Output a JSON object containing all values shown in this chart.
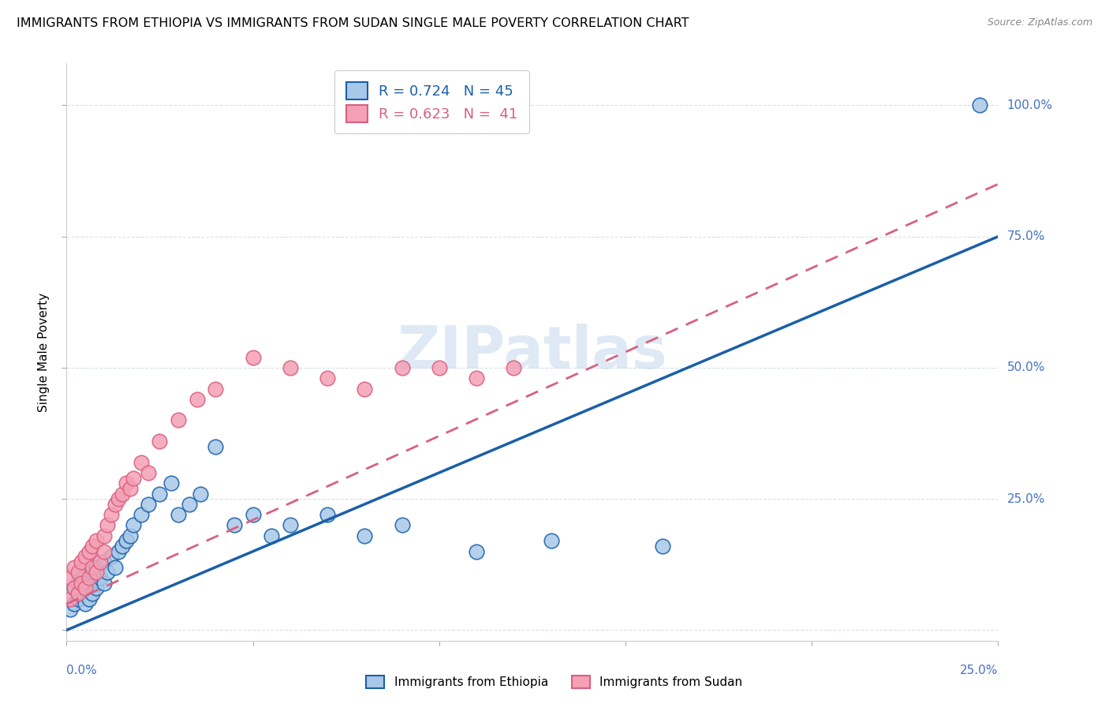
{
  "title": "IMMIGRANTS FROM ETHIOPIA VS IMMIGRANTS FROM SUDAN SINGLE MALE POVERTY CORRELATION CHART",
  "source": "Source: ZipAtlas.com",
  "ylabel": "Single Male Poverty",
  "ytick_vals": [
    0,
    0.25,
    0.5,
    0.75,
    1.0
  ],
  "xlim": [
    0,
    0.25
  ],
  "ylim": [
    -0.02,
    1.08
  ],
  "watermark": "ZIPatlas",
  "color_ethiopia": "#a8c8e8",
  "color_sudan": "#f4a0b5",
  "line_color_ethiopia": "#1a5fa8",
  "line_color_sudan": "#d96080",
  "axis_label_color": "#4472c4",
  "ethiopia_scatter_x": [
    0.001,
    0.002,
    0.002,
    0.003,
    0.003,
    0.004,
    0.004,
    0.005,
    0.005,
    0.006,
    0.006,
    0.007,
    0.007,
    0.008,
    0.008,
    0.009,
    0.01,
    0.01,
    0.011,
    0.012,
    0.013,
    0.014,
    0.015,
    0.016,
    0.017,
    0.018,
    0.02,
    0.022,
    0.025,
    0.028,
    0.03,
    0.033,
    0.036,
    0.04,
    0.045,
    0.05,
    0.055,
    0.06,
    0.07,
    0.08,
    0.09,
    0.11,
    0.13,
    0.16,
    0.245
  ],
  "ethiopia_scatter_y": [
    0.04,
    0.05,
    0.08,
    0.06,
    0.09,
    0.07,
    0.1,
    0.05,
    0.08,
    0.06,
    0.09,
    0.07,
    0.11,
    0.08,
    0.12,
    0.1,
    0.09,
    0.13,
    0.11,
    0.14,
    0.12,
    0.15,
    0.16,
    0.17,
    0.18,
    0.2,
    0.22,
    0.24,
    0.26,
    0.28,
    0.22,
    0.24,
    0.26,
    0.35,
    0.2,
    0.22,
    0.18,
    0.2,
    0.22,
    0.18,
    0.2,
    0.15,
    0.17,
    0.16,
    1.0
  ],
  "sudan_scatter_x": [
    0.001,
    0.001,
    0.002,
    0.002,
    0.003,
    0.003,
    0.004,
    0.004,
    0.005,
    0.005,
    0.006,
    0.006,
    0.007,
    0.007,
    0.008,
    0.008,
    0.009,
    0.01,
    0.01,
    0.011,
    0.012,
    0.013,
    0.014,
    0.015,
    0.016,
    0.017,
    0.018,
    0.02,
    0.022,
    0.025,
    0.03,
    0.035,
    0.04,
    0.05,
    0.06,
    0.07,
    0.08,
    0.09,
    0.1,
    0.11,
    0.12
  ],
  "sudan_scatter_y": [
    0.06,
    0.1,
    0.08,
    0.12,
    0.07,
    0.11,
    0.09,
    0.13,
    0.08,
    0.14,
    0.1,
    0.15,
    0.12,
    0.16,
    0.11,
    0.17,
    0.13,
    0.15,
    0.18,
    0.2,
    0.22,
    0.24,
    0.25,
    0.26,
    0.28,
    0.27,
    0.29,
    0.32,
    0.3,
    0.36,
    0.4,
    0.44,
    0.46,
    0.52,
    0.5,
    0.48,
    0.46,
    0.5,
    0.5,
    0.48,
    0.5
  ],
  "ethiopia_line_x": [
    0.0,
    0.25
  ],
  "ethiopia_line_y": [
    0.0,
    0.75
  ],
  "sudan_line_x": [
    0.0,
    0.25
  ],
  "sudan_line_y": [
    0.05,
    0.85
  ]
}
